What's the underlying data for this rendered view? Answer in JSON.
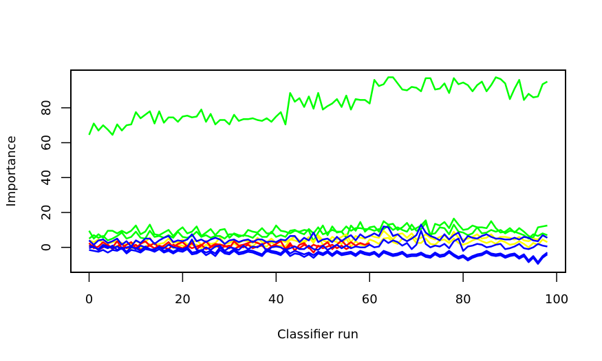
{
  "chart_data": {
    "type": "line",
    "title": "",
    "xlabel": "Classifier run",
    "ylabel": "Importance",
    "xlim": [
      -3.9,
      101.9
    ],
    "ylim": [
      -14.3,
      101.6
    ],
    "xticks": [
      0,
      20,
      40,
      60,
      80,
      100
    ],
    "yticks": [
      0,
      20,
      40,
      60,
      80
    ],
    "grid": false,
    "legend": "none",
    "series": [
      {
        "color": "#00ff00",
        "values": [
          64.5,
          71.0,
          67.0,
          70.0,
          67.5,
          64.5,
          70.5,
          67.0,
          70.0,
          70.5,
          77.5,
          74.0,
          76.0,
          78.0,
          71.0,
          78.0,
          71.5,
          74.5,
          74.5,
          72.0,
          75.0,
          75.5,
          74.5,
          75.0,
          79.0,
          72.0,
          76.5,
          70.5,
          73.0,
          73.0,
          70.5,
          76.0,
          72.5,
          73.5,
          73.5,
          74.0,
          73.0,
          72.5,
          74.0,
          72.0,
          75.0,
          77.5,
          70.5,
          88.5,
          83.5,
          85.5,
          80.5,
          86.5,
          79.5,
          88.5,
          79.0,
          81.0,
          82.5,
          85.0,
          80.5,
          87.0,
          79.0,
          85.0,
          84.5,
          84.5,
          82.5,
          96.0,
          92.5,
          93.5,
          97.5,
          97.5,
          94.0,
          90.5,
          90.0,
          92.0,
          91.5,
          89.5,
          97.0,
          97.0,
          90.5,
          91.0,
          94.0,
          88.5,
          97.0,
          93.5,
          94.5,
          93.0,
          89.5,
          93.0,
          95.0,
          89.5,
          93.0,
          97.5,
          96.5,
          94.0,
          85.0,
          91.0,
          96.0,
          84.5,
          88.0,
          86.0,
          86.5,
          93.5,
          95.0
        ]
      },
      {
        "color": "#00ff00",
        "values": [
          9.5,
          5.0,
          7.5,
          5.5,
          9.5,
          9.5,
          8.0,
          9.5,
          8.0,
          9.5,
          12.5,
          7.5,
          9.0,
          13.0,
          7.5,
          7.0,
          8.5,
          10.0,
          6.5,
          9.5,
          11.5,
          8.0,
          9.0,
          12.0,
          6.5,
          8.5,
          10.5,
          7.0,
          10.0,
          10.5,
          5.5,
          8.0,
          7.0,
          6.5,
          10.0,
          9.0,
          8.5,
          11.0,
          8.0,
          8.0,
          12.5,
          9.5,
          9.0,
          8.0,
          9.5,
          9.0,
          10.0,
          9.5,
          3.5,
          8.5,
          12.5,
          7.0,
          12.0,
          8.5,
          9.0,
          5.5,
          12.5,
          9.5,
          14.5,
          9.0,
          11.5,
          12.0,
          9.0,
          15.0,
          13.0,
          13.5,
          10.0,
          11.5,
          14.0,
          10.0,
          11.0,
          12.5,
          15.5,
          6.0,
          13.5,
          12.5,
          14.5,
          11.0,
          16.5,
          13.0,
          10.0,
          10.5,
          12.5,
          11.5,
          11.5,
          11.0,
          15.0,
          11.0,
          8.5,
          9.0,
          11.0,
          8.5,
          11.0,
          9.0,
          6.5,
          5.5,
          11.5,
          12.0,
          12.5
        ]
      },
      {
        "color": "#00ff00",
        "values": [
          5.0,
          7.0,
          5.5,
          6.5,
          4.0,
          5.0,
          6.5,
          8.5,
          5.0,
          6.0,
          9.0,
          5.5,
          5.0,
          9.5,
          6.0,
          6.5,
          5.5,
          7.0,
          5.5,
          9.0,
          6.0,
          5.5,
          6.5,
          9.0,
          6.0,
          7.0,
          5.5,
          6.5,
          6.5,
          5.0,
          7.5,
          7.5,
          6.0,
          7.0,
          6.5,
          5.5,
          8.0,
          6.0,
          6.0,
          9.0,
          6.0,
          7.0,
          6.0,
          9.5,
          10.0,
          8.5,
          7.5,
          10.5,
          8.0,
          11.5,
          7.5,
          8.5,
          10.0,
          9.0,
          9.0,
          12.0,
          9.5,
          11.0,
          11.0,
          10.5,
          10.5,
          9.5,
          10.5,
          10.5,
          12.5,
          10.0,
          11.5,
          10.0,
          9.0,
          13.0,
          9.5,
          10.5,
          14.0,
          7.5,
          8.0,
          11.5,
          11.0,
          7.5,
          13.0,
          9.0,
          8.5,
          7.0,
          8.0,
          11.5,
          8.0,
          8.5,
          10.0,
          9.0,
          10.0,
          8.0,
          9.5,
          9.0,
          8.0,
          7.0,
          5.0,
          7.5,
          6.5,
          8.0,
          7.0
        ]
      },
      {
        "color": "#ffff00",
        "values": [
          4.0,
          3.0,
          4.5,
          2.5,
          2.0,
          3.0,
          3.5,
          2.5,
          1.5,
          2.0,
          3.5,
          2.5,
          3.0,
          5.5,
          1.5,
          2.0,
          2.5,
          5.0,
          2.5,
          3.0,
          4.5,
          1.5,
          3.0,
          4.0,
          1.5,
          3.5,
          2.0,
          2.5,
          5.5,
          2.0,
          2.5,
          4.0,
          2.5,
          4.0,
          3.5,
          2.5,
          5.5,
          3.0,
          3.0,
          5.0,
          2.5,
          4.0,
          3.0,
          4.5,
          6.0,
          4.0,
          3.5,
          6.0,
          2.5,
          7.0,
          4.0,
          3.0,
          6.0,
          4.5,
          6.0,
          7.5,
          3.0,
          6.5,
          5.5,
          5.0,
          7.0,
          6.0,
          5.5,
          9.5,
          7.0,
          4.5,
          7.5,
          8.0,
          5.5,
          8.0,
          4.5,
          5.5,
          7.5,
          5.5,
          4.5,
          6.0,
          7.0,
          4.0,
          9.0,
          5.5,
          4.5,
          5.0,
          6.0,
          7.5,
          5.0,
          5.5,
          7.5,
          4.5,
          6.0,
          6.0,
          5.5,
          4.5,
          6.0,
          4.0,
          3.5,
          5.0,
          4.5,
          7.0,
          5.5
        ]
      },
      {
        "color": "#ffff00",
        "values": [
          1.5,
          0.5,
          -1.0,
          1.0,
          0.0,
          -0.5,
          1.0,
          -0.5,
          0.0,
          -1.0,
          1.5,
          -0.5,
          0.5,
          2.0,
          -1.0,
          1.0,
          0.0,
          2.0,
          -0.5,
          1.5,
          1.0,
          0.0,
          1.5,
          1.5,
          -0.5,
          1.5,
          0.5,
          0.0,
          2.0,
          0.5,
          0.0,
          2.5,
          0.0,
          1.5,
          2.0,
          0.5,
          3.0,
          1.0,
          0.5,
          3.0,
          1.0,
          1.0,
          0.5,
          4.5,
          4.0,
          3.0,
          2.5,
          5.0,
          3.5,
          6.0,
          1.5,
          2.5,
          4.0,
          3.0,
          2.0,
          5.0,
          0.5,
          3.5,
          1.5,
          1.0,
          4.5,
          3.5,
          2.0,
          5.0,
          5.5,
          3.0,
          2.0,
          5.0,
          3.5,
          6.0,
          2.5,
          2.5,
          5.0,
          2.0,
          1.5,
          4.0,
          4.5,
          2.5,
          5.0,
          2.5,
          1.5,
          2.5,
          4.0,
          5.0,
          3.5,
          2.5,
          3.5,
          2.0,
          4.0,
          3.0,
          1.5,
          2.0,
          3.5,
          2.0,
          0.0,
          2.5,
          1.5,
          4.5,
          3.0
        ]
      },
      {
        "color": "#ff0000",
        "values": [
          2.5,
          -0.5,
          0.5,
          3.0,
          1.0,
          0.0,
          3.5,
          -0.5,
          1.5,
          3.0,
          -0.5,
          2.0,
          3.5,
          1.0,
          2.5,
          -0.5,
          1.0,
          3.0,
          0.0,
          2.0,
          3.0,
          0.5,
          2.5,
          -1.0,
          1.0,
          3.5,
          0.5,
          2.0,
          1.5,
          1.0,
          -0.5,
          3.5,
          1.0,
          1.5,
          2.5,
          3.5,
          2.5,
          1.5,
          3.0,
          0.5,
          2.0,
          3.5,
          -1.0,
          2.5,
          -2.0,
          1.5,
          2.5,
          -0.5,
          1.5,
          0.5,
          1.0,
          3.0,
          -1.0,
          1.5,
          4.0,
          1.0,
          3.0,
          1.0,
          2.5,
          1.5,
          2.5
        ]
      },
      {
        "color": "#ff0000",
        "values": [
          0.5,
          1.5,
          -1.5,
          0.0,
          1.5,
          -1.0,
          0.5,
          2.0,
          -0.5,
          0.5,
          1.5,
          -1.5,
          0.0,
          1.0,
          -0.5,
          1.0,
          0.0,
          -1.0,
          1.5,
          0.5,
          -0.5,
          1.0,
          -0.5,
          0.5,
          1.5,
          -1.0,
          0.0,
          1.5,
          -0.5,
          0.5,
          1.0,
          -1.0,
          0.5,
          0.0,
          1.5,
          -0.5,
          0.5,
          1.0,
          -1.5,
          0.5,
          1.0,
          0.0,
          -2.0,
          1.0,
          0.5,
          -0.5,
          1.5,
          0.0,
          -3.0,
          1.0,
          -0.5,
          0.5,
          1.5,
          -0.5,
          1.0,
          -1.0,
          0.5
        ]
      },
      {
        "color": "#0000ff",
        "values": [
          4.0,
          1.5,
          4.0,
          4.5,
          2.5,
          3.5,
          5.0,
          1.5,
          3.5,
          0.5,
          4.0,
          2.5,
          5.0,
          5.0,
          2.0,
          4.0,
          5.5,
          6.5,
          3.0,
          4.0,
          3.5,
          4.5,
          7.5,
          3.5,
          4.5,
          3.0,
          4.5,
          5.5,
          4.5,
          2.0,
          4.0,
          4.5,
          3.0,
          4.0,
          4.5,
          3.0,
          4.5,
          4.5,
          3.0,
          3.5,
          3.0,
          4.5,
          4.0,
          6.5,
          6.5,
          3.0,
          5.5,
          4.0,
          8.5,
          3.0,
          4.5,
          5.0,
          3.0,
          6.0,
          3.5,
          5.5,
          7.0,
          4.0,
          7.5,
          5.5,
          6.5,
          8.0,
          6.5,
          12.0,
          11.5,
          6.5,
          7.5,
          5.0,
          3.5,
          5.0,
          7.0,
          13.0,
          8.5,
          6.5,
          5.5,
          4.0,
          7.5,
          4.5,
          7.0,
          8.5,
          3.0,
          6.5,
          5.5,
          5.0,
          6.5,
          7.5,
          6.0,
          5.0,
          5.0,
          4.5,
          4.5,
          5.5,
          4.5,
          6.0,
          5.5,
          4.0,
          3.5,
          7.0,
          5.5
        ]
      },
      {
        "color": "#0000ff",
        "values": [
          1.0,
          0.0,
          -1.0,
          1.5,
          0.5,
          -0.5,
          0.5,
          -1.0,
          0.0,
          0.5,
          -1.0,
          1.0,
          0.0,
          -1.5,
          -1.0,
          0.0,
          -0.5,
          1.5,
          0.0,
          -0.5,
          -1.0,
          0.0,
          4.5,
          -1.5,
          -2.0,
          0.0,
          -1.5,
          0.5,
          1.0,
          -2.0,
          0.0,
          -0.5,
          -1.5,
          1.0,
          -1.0,
          0.5,
          0.0,
          2.0,
          -2.5,
          0.0,
          0.5,
          0.0,
          -1.5,
          -0.5,
          0.5,
          -1.0,
          -1.0,
          1.0,
          -1.0,
          -1.5,
          1.0,
          -1.5,
          0.0,
          1.5,
          -0.5,
          1.0,
          -0.5,
          0.5,
          0.0,
          0.0,
          1.5,
          0.0,
          0.5,
          4.5,
          2.5,
          4.0,
          3.0,
          1.0,
          2.5,
          -1.0,
          1.5,
          9.5,
          2.0,
          0.0,
          1.0,
          0.5,
          2.0,
          -0.5,
          3.5,
          5.0,
          -2.0,
          0.5,
          1.0,
          2.0,
          1.5,
          0.0,
          0.5,
          1.5,
          2.0,
          -1.0,
          -0.5,
          0.5,
          2.0,
          -0.5,
          -1.0,
          0.0,
          2.0,
          1.0,
          0.5
        ]
      },
      {
        "color": "#0000ff",
        "values": [
          -1.5,
          -2.0,
          -2.5,
          -1.5,
          -3.0,
          -1.5,
          -2.0,
          -0.5,
          -3.5,
          -1.5,
          -2.0,
          -3.0,
          -1.0,
          -1.5,
          -2.5,
          -1.0,
          -3.0,
          -2.0,
          -3.5,
          -2.0,
          -2.5,
          -1.0,
          -4.0,
          -3.5,
          -2.0,
          -4.5,
          -3.0,
          -5.0,
          -1.5,
          -3.5,
          -4.0,
          -2.0,
          -4.0,
          -3.5,
          -2.5,
          -3.0,
          -4.0,
          -5.0,
          -2.0,
          -3.0,
          -3.5,
          -4.5,
          -2.0,
          -5.0,
          -3.5,
          -4.0,
          -5.5,
          -4.0,
          -6.0,
          -3.5,
          -4.5,
          -3.0,
          -5.0,
          -3.0,
          -4.5,
          -4.0,
          -3.5,
          -5.0,
          -3.0,
          -4.0,
          -4.5,
          -3.5,
          -5.5,
          -3.0,
          -4.0,
          -5.0,
          -4.5,
          -3.5,
          -5.5,
          -5.0,
          -5.0,
          -4.0,
          -5.5,
          -6.0,
          -4.0,
          -5.5,
          -5.0,
          -3.0,
          -5.0,
          -6.5,
          -5.5,
          -7.5,
          -6.0,
          -5.0,
          -4.5,
          -3.0,
          -4.5,
          -5.0,
          -4.5,
          -6.0,
          -5.0,
          -4.5,
          -6.5,
          -5.0,
          -8.5,
          -6.0,
          -9.5,
          -6.0,
          -4.0
        ]
      },
      {
        "color": "#0000ff",
        "values": [
          -0.5,
          0.5,
          -1.5,
          0.5,
          -0.5,
          1.0,
          -1.5,
          0.0,
          -2.5,
          0.0,
          -0.5,
          -2.0,
          0.5,
          -1.0,
          -1.5,
          0.5,
          -2.0,
          -1.0,
          -2.5,
          -1.0,
          -1.5,
          0.0,
          -3.0,
          -2.5,
          -1.5,
          -3.0,
          -2.0,
          -3.5,
          0.0,
          -2.5,
          -3.0,
          -1.0,
          -3.0,
          -2.5,
          -1.5,
          -2.0,
          -3.0,
          -4.0,
          -1.0,
          -2.0,
          -2.5,
          -3.5,
          -1.0,
          -3.5,
          -2.0,
          -3.0,
          -4.0,
          -3.0,
          -4.5,
          -2.5,
          -3.5,
          -2.0,
          -4.0,
          -2.0,
          -3.5,
          -3.0,
          -2.5,
          -4.0,
          -2.0,
          -3.0,
          -3.5,
          -2.5,
          -4.5,
          -2.0,
          -3.0,
          -4.0,
          -3.5,
          -2.5,
          -4.5,
          -4.0,
          -4.0,
          -3.0,
          -4.5,
          -5.0,
          -3.0,
          -4.5,
          -4.0,
          -2.0,
          -4.0,
          -5.5,
          -4.5,
          -6.5,
          -5.0,
          -4.0,
          -3.5,
          -2.0,
          -3.5,
          -4.0,
          -3.5,
          -5.0,
          -4.0,
          -3.5,
          -5.5,
          -4.0,
          -7.5,
          -5.0,
          -8.5,
          -5.0,
          -3.0
        ]
      }
    ]
  }
}
